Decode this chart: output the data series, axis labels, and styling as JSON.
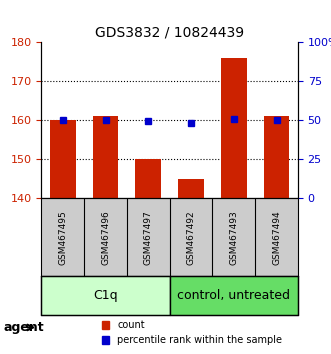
{
  "title": "GDS3832 / 10824439",
  "samples": [
    "GSM467495",
    "GSM467496",
    "GSM467497",
    "GSM467492",
    "GSM467493",
    "GSM467494"
  ],
  "counts": [
    160.0,
    161.0,
    150.0,
    145.0,
    176.0,
    161.0
  ],
  "percentiles": [
    50.0,
    50.5,
    49.5,
    48.5,
    51.0,
    50.5
  ],
  "ylim_left": [
    140,
    180
  ],
  "ylim_right": [
    0,
    100
  ],
  "yticks_left": [
    140,
    150,
    160,
    170,
    180
  ],
  "yticks_right": [
    0,
    25,
    50,
    75,
    100
  ],
  "ytick_labels_right": [
    "0",
    "25",
    "50",
    "75",
    "100%"
  ],
  "group1_label": "C1q",
  "group2_label": "control, untreated",
  "group1_color": "#ccffcc",
  "group2_color": "#66dd66",
  "agent_label": "agent",
  "bar_color": "#cc2200",
  "dot_color": "#0000cc",
  "bar_width": 0.6,
  "legend_count_label": "count",
  "legend_pct_label": "percentile rank within the sample",
  "grid_color": "#000000",
  "sample_box_color": "#cccccc"
}
